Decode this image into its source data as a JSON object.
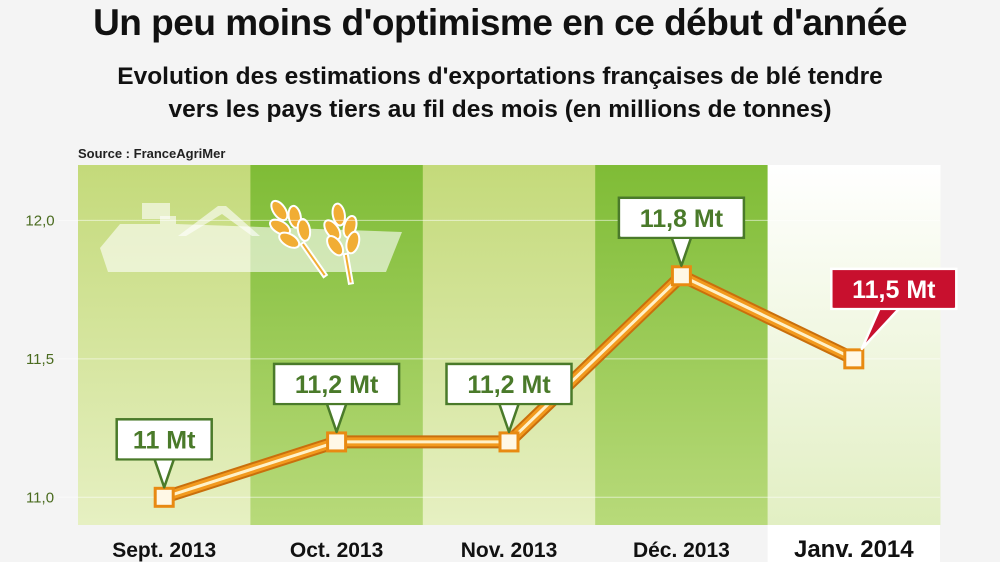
{
  "title": "Un peu moins d'optimisme en ce début d'année",
  "subtitle_line1": "Evolution des estimations d'exportations françaises de blé tendre",
  "subtitle_line2": "vers les pays tiers au fil des mois (en millions de tonnes)",
  "source": "Source : FranceAgriMer",
  "colors": {
    "band_light": "#cfe08c",
    "band_dark": "#8cc63e",
    "band_last": "#ffffff",
    "line": "#f29a1e",
    "label_green": "#4a7a2a",
    "label_red": "#c8102e",
    "axis_text": "#4a6b1f"
  },
  "chart_data": {
    "type": "line",
    "categories": [
      "Sept. 2013",
      "Oct. 2013",
      "Nov. 2013",
      "Déc. 2013",
      "Janv. 2014"
    ],
    "values": [
      11.0,
      11.2,
      11.2,
      11.8,
      11.5
    ],
    "data_labels": [
      "11 Mt",
      "11,2 Mt",
      "11,2 Mt",
      "11,8 Mt",
      "11,5 Mt"
    ],
    "highlight_index": 4,
    "yticks": [
      11.0,
      11.5,
      12.0
    ],
    "ytick_labels": [
      "11,0",
      "11,5",
      "12,0"
    ],
    "ylim": [
      10.9,
      12.2
    ],
    "grid": false
  }
}
